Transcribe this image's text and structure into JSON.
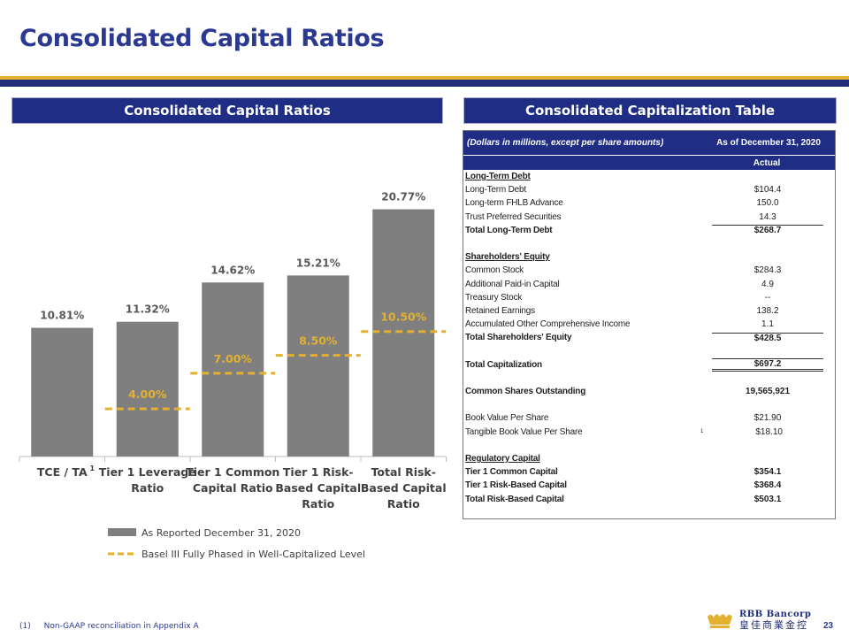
{
  "page": {
    "title": "Consolidated Capital Ratios",
    "page_number": "23",
    "footnote_marker": "(1)",
    "footnote_text": "Non-GAAP reconciliation in Appendix A",
    "logo_name": "RBB Bancorp",
    "logo_cn": "皇佳商業金控"
  },
  "left_header": "Consolidated Capital Ratios",
  "right_header": "Consolidated Capitalization Table",
  "chart_data": {
    "type": "bar",
    "categories": [
      "TCE / TA",
      "Tier 1 Leverage Ratio",
      "Tier 1 Common Capital Ratio",
      "Tier 1 Risk-Based Capital Ratio",
      "Total Risk-Based Capital Ratio"
    ],
    "category_lines": [
      [
        "TCE / TA"
      ],
      [
        "Tier 1 Leverage",
        "Ratio"
      ],
      [
        "Tier 1 Common",
        "Capital Ratio"
      ],
      [
        "Tier 1 Risk-",
        "Based Capital",
        "Ratio"
      ],
      [
        "Total Risk-",
        "Based Capital",
        "Ratio"
      ]
    ],
    "category_superscripts": [
      "1",
      "",
      "",
      "",
      ""
    ],
    "series": [
      {
        "name": "As Reported December 31, 2020",
        "values": [
          10.81,
          11.32,
          14.62,
          15.21,
          20.77
        ],
        "labels": [
          "10.81%",
          "11.32%",
          "14.62%",
          "15.21%",
          "20.77%"
        ],
        "color": "#7f7f7f"
      }
    ],
    "thresholds": {
      "name": "Basel III Fully Phased in Well-Capitalized Level",
      "values": [
        null,
        4.0,
        7.0,
        8.5,
        10.5
      ],
      "labels": [
        "",
        "4.00%",
        "7.00%",
        "8.50%",
        "10.50%"
      ],
      "color": "#e3b12f"
    },
    "ylim": [
      0,
      22
    ],
    "title": "",
    "xlabel": "",
    "ylabel": ""
  },
  "table": {
    "header_label": "(Dollars in millions, except per share amounts)",
    "header_col": "As of December 31, 2020",
    "subheader_col": "Actual",
    "rows": [
      {
        "label": "Long-Term Debt",
        "value": "",
        "style": "bold uline"
      },
      {
        "label": "Long-Term Debt",
        "value": "$104.4",
        "style": ""
      },
      {
        "label": " Long-term FHLB Advance",
        "value": "150.0",
        "style": ""
      },
      {
        "label": "Trust Preferred Securities",
        "value": "14.3",
        "style": ""
      },
      {
        "label": "Total Long-Term Debt",
        "value": "$268.7",
        "style": "bold sep-top"
      },
      {
        "label": "",
        "value": "",
        "style": "gap"
      },
      {
        "label": "Shareholders' Equity",
        "value": "",
        "style": "bold uline"
      },
      {
        "label": "Common Stock",
        "value": "$284.3",
        "style": ""
      },
      {
        "label": "Additional Paid-in Capital",
        "value": "4.9",
        "style": ""
      },
      {
        "label": "Treasury Stock",
        "value": "--",
        "style": ""
      },
      {
        "label": "Retained Earnings",
        "value": "138.2",
        "style": ""
      },
      {
        "label": "Accumulated Other Comprehensive Income",
        "value": "1.1",
        "style": ""
      },
      {
        "label": "Total Shareholders' Equity",
        "value": "$428.5",
        "style": "bold sep-top"
      },
      {
        "label": "",
        "value": "",
        "style": "gap"
      },
      {
        "label": "Total Capitalization",
        "value": "$697.2",
        "style": "bold sep-top dbl"
      },
      {
        "label": "",
        "value": "",
        "style": "gap"
      },
      {
        "label": "Common Shares Outstanding",
        "value": "19,565,921",
        "style": "bold"
      },
      {
        "label": "",
        "value": "",
        "style": "gap"
      },
      {
        "label": "Book Value Per Share",
        "value": "$21.90",
        "style": ""
      },
      {
        "label": "Tangible Book Value Per Share",
        "value": "$18.10",
        "style": "",
        "sup": "1"
      },
      {
        "label": "",
        "value": "",
        "style": "gap"
      },
      {
        "label": "Regulatory Capital",
        "value": "",
        "style": "bold uline"
      },
      {
        "label": "Tier 1 Common Capital",
        "value": "$354.1",
        "style": "bold"
      },
      {
        "label": "Tier 1 Risk-Based Capital",
        "value": "$368.4",
        "style": "bold"
      },
      {
        "label": "Total Risk-Based Capital",
        "value": "$503.1",
        "style": "bold"
      }
    ]
  }
}
